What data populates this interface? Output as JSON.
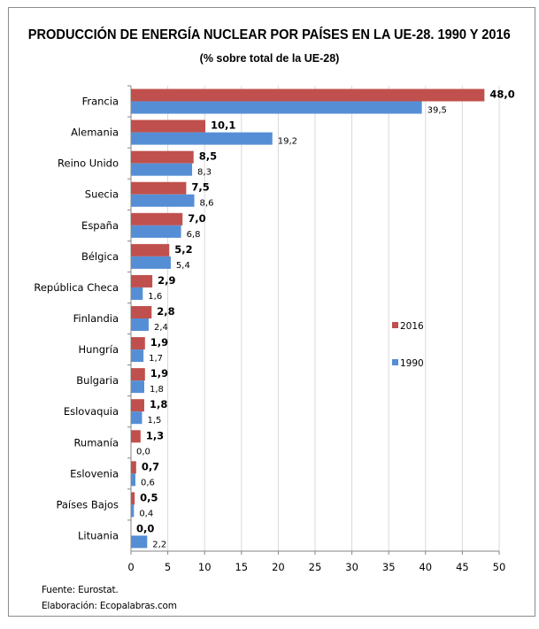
{
  "chart_data": {
    "type": "bar",
    "orientation": "horizontal",
    "title": "PRODUCCIÓN DE ENERGÍA NUCLEAR POR PAÍSES EN LA UE-28. 1990 Y 2016",
    "subtitle": "(% sobre total de la UE-28)",
    "categories": [
      "Francia",
      "Alemania",
      "Reino Unido",
      "Suecia",
      "España",
      "Bélgica",
      "República Checa",
      "Finlandia",
      "Hungría",
      "Bulgaria",
      "Eslovaquia",
      "Rumanía",
      "Eslovenia",
      "Países Bajos",
      "Lituania"
    ],
    "series": [
      {
        "name": "2016",
        "color": "#c0504d",
        "values": [
          48.0,
          10.1,
          8.5,
          7.5,
          7.0,
          5.2,
          2.9,
          2.8,
          1.9,
          1.9,
          1.8,
          1.3,
          0.7,
          0.5,
          0.0
        ],
        "labels": [
          "48,0",
          "10,1",
          "8,5",
          "7,5",
          "7,0",
          "5,2",
          "2,9",
          "2,8",
          "1,9",
          "1,9",
          "1,8",
          "1,3",
          "0,7",
          "0,5",
          "0,0"
        ]
      },
      {
        "name": "1990",
        "color": "#558ed5",
        "values": [
          39.5,
          19.2,
          8.3,
          8.6,
          6.8,
          5.4,
          1.6,
          2.4,
          1.7,
          1.8,
          1.5,
          0.0,
          0.6,
          0.4,
          2.2
        ],
        "labels": [
          "39,5",
          "19,2",
          "8,3",
          "8,6",
          "6,8",
          "5,4",
          "1,6",
          "2,4",
          "1,7",
          "1,8",
          "1,5",
          "0,0",
          "0,6",
          "0,4",
          "2,2"
        ]
      }
    ],
    "xlim": [
      0,
      50
    ],
    "xticks": [
      "0",
      "5",
      "10",
      "15",
      "20",
      "25",
      "30",
      "35",
      "40",
      "45",
      "50"
    ],
    "grid": true,
    "legend_placement": "right"
  },
  "footer": {
    "source": "Fuente: Eurostat.",
    "credit": "Elaboración: Ecopalabras.com"
  }
}
